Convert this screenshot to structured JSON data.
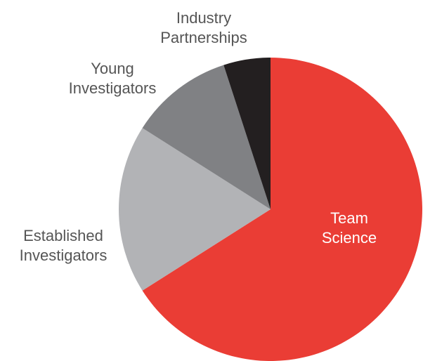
{
  "chart_data": {
    "type": "pie",
    "categories": [
      "Team Science",
      "Established Investigators",
      "Young Investigators",
      "Industry Partnerships"
    ],
    "values": [
      66,
      18,
      11,
      5
    ],
    "colors": [
      "#ea3d35",
      "#b2b3b6",
      "#808184",
      "#231f20"
    ],
    "label_colors": [
      "#ffffff",
      "#555555",
      "#555555",
      "#555555"
    ]
  }
}
